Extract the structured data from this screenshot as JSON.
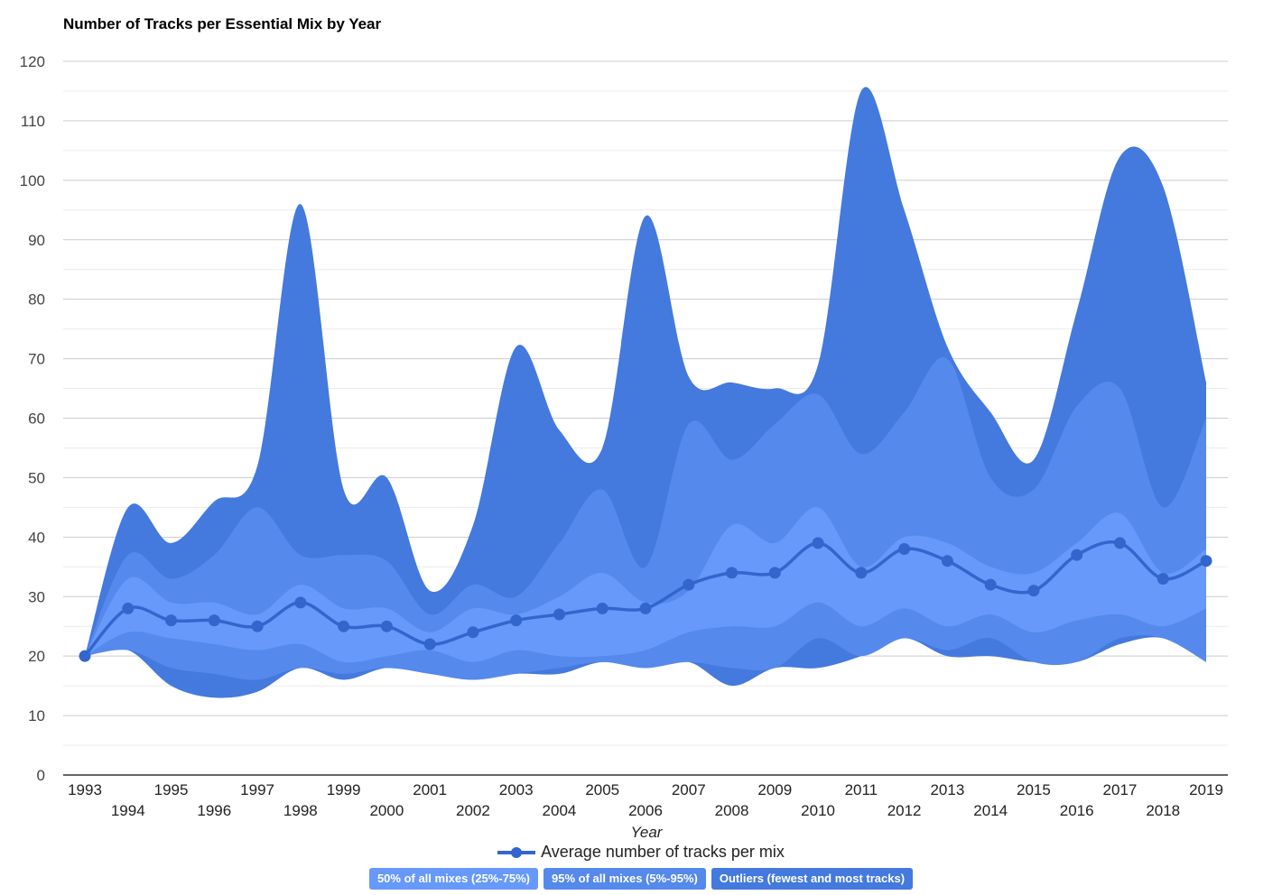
{
  "chart_data": {
    "type": "area",
    "title": "Number of Tracks per Essential Mix by Year",
    "xlabel": "Year",
    "ylabel": "",
    "ylim": [
      0,
      120
    ],
    "y_ticks": [
      0,
      10,
      20,
      30,
      40,
      50,
      60,
      70,
      80,
      90,
      100,
      110,
      120
    ],
    "x": [
      1993,
      1994,
      1995,
      1996,
      1997,
      1998,
      1999,
      2000,
      2001,
      2002,
      2003,
      2004,
      2005,
      2006,
      2007,
      2008,
      2009,
      2010,
      2011,
      2012,
      2013,
      2014,
      2015,
      2016,
      2017,
      2018,
      2019
    ],
    "x_tick_labels": [
      "1993",
      "1994",
      "1995",
      "1996",
      "1997",
      "1998",
      "1999",
      "2000",
      "2001",
      "2002",
      "2003",
      "2004",
      "2005",
      "2006",
      "2007",
      "2008",
      "2009",
      "2010",
      "2011",
      "2012",
      "2013",
      "2014",
      "2015",
      "2016",
      "2017",
      "2018",
      "2019"
    ],
    "bands": [
      {
        "name": "Outliers (fewest and most tracks)",
        "color": "#4479de",
        "low": [
          20,
          21,
          15,
          13,
          14,
          18,
          16,
          18,
          17,
          16,
          17,
          17,
          19,
          18,
          19,
          15,
          18,
          18,
          20,
          23,
          20,
          20,
          19,
          19,
          22,
          23,
          19
        ],
        "high": [
          20,
          45,
          39,
          46,
          52,
          96,
          48,
          50,
          31,
          42,
          72,
          58,
          55,
          94,
          67,
          66,
          65,
          69,
          115,
          95,
          72,
          61,
          53,
          78,
          104,
          99,
          66
        ]
      },
      {
        "name": "95% of all mixes (5%-95%)",
        "color": "#5589ec",
        "low": [
          20,
          21,
          18,
          17,
          16,
          18,
          17,
          18,
          17,
          16,
          17,
          18,
          19,
          18,
          19,
          18,
          18,
          23,
          20,
          23,
          21,
          23,
          19,
          19,
          23,
          23,
          19
        ],
        "high": [
          20,
          37,
          33,
          37,
          45,
          37,
          37,
          36,
          27,
          32,
          30,
          39,
          48,
          35,
          59,
          53,
          59,
          64,
          54,
          61,
          70,
          50,
          48,
          62,
          65,
          45,
          60
        ]
      },
      {
        "name": "50% of all mixes (25%-75%)",
        "color": "#6699fa",
        "low": [
          20,
          24,
          23,
          22,
          21,
          22,
          19,
          20,
          21,
          19,
          21,
          20,
          20,
          21,
          24,
          25,
          25,
          29,
          25,
          28,
          25,
          27,
          24,
          26,
          27,
          25,
          28
        ],
        "high": [
          20,
          33,
          29,
          29,
          27,
          32,
          28,
          28,
          24,
          28,
          27,
          30,
          34,
          29,
          31,
          42,
          39,
          45,
          35,
          40,
          39,
          35,
          34,
          39,
          44,
          34,
          38
        ]
      }
    ],
    "series": [
      {
        "name": "Average number of tracks per mix",
        "color": "#3366cc",
        "values": [
          20,
          28,
          26,
          26,
          25,
          29,
          25,
          25,
          22,
          24,
          26,
          27,
          28,
          28,
          32,
          34,
          34,
          39,
          34,
          38,
          36,
          32,
          31,
          37,
          39,
          33,
          36
        ]
      }
    ],
    "grid": true,
    "legend": "bottom"
  },
  "legend": {
    "line_label": "Average number of tracks per mix",
    "badges": [
      {
        "label": "50% of all mixes (25%-75%)",
        "color": "#6699fa"
      },
      {
        "label": "95% of all mixes (5%-95%)",
        "color": "#5589ec"
      },
      {
        "label": "Outliers (fewest and most tracks)",
        "color": "#4479de"
      }
    ]
  }
}
